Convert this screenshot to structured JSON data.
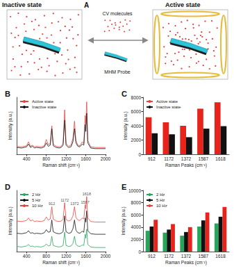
{
  "diagram": {
    "panel": "A",
    "left_title": "Inactive state",
    "right_title": "Active state",
    "molecules_label": "CV molecules",
    "probe_label": "MHM Probe"
  },
  "chart_data": [
    {
      "type": "line",
      "title": "B",
      "x_label": "Raman shift (cm⁻¹)",
      "y_label": "Intensity (a.u.)",
      "x": [
        200,
        300,
        400,
        440,
        480,
        520,
        560,
        600,
        700,
        760,
        800,
        840,
        880,
        912,
        940,
        1000,
        1060,
        1100,
        1140,
        1172,
        1200,
        1250,
        1300,
        1340,
        1372,
        1400,
        1440,
        1480,
        1530,
        1560,
        1587,
        1600,
        1618,
        1640,
        1700,
        1800,
        1900,
        2000
      ],
      "series": [
        {
          "name": "Active state",
          "color": "#e8423c",
          "values": [
            14,
            13,
            15,
            22,
            14,
            16,
            13,
            14,
            13,
            15,
            26,
            17,
            19,
            50,
            18,
            14,
            13,
            14,
            19,
            78,
            19,
            14,
            16,
            28,
            58,
            24,
            16,
            15,
            22,
            19,
            68,
            52,
            92,
            24,
            13,
            12,
            12,
            12
          ]
        },
        {
          "name": "Inactive state",
          "color": "#111111",
          "values": [
            12,
            11,
            13,
            18,
            12,
            14,
            11,
            12,
            11,
            13,
            20,
            14,
            16,
            45,
            15,
            12,
            11,
            12,
            16,
            60,
            16,
            12,
            13,
            22,
            45,
            20,
            14,
            13,
            18,
            16,
            52,
            40,
            72,
            20,
            11,
            10,
            10,
            10
          ]
        }
      ],
      "xlim": [
        200,
        2000
      ],
      "xticks": [
        400,
        800,
        1200,
        1600,
        2000
      ],
      "ylim": [
        0,
        100
      ],
      "tick_labels": "x",
      "legend": "upper left",
      "grid": false
    },
    {
      "type": "bar",
      "title": "C",
      "x_label": "Raman Peaks (cm⁻¹)",
      "y_label": "Intensity (a.u.)",
      "categories": [
        "912",
        "1172",
        "1372",
        "1587",
        "1618"
      ],
      "series": [
        {
          "name": "Active state",
          "color": "#e8231c",
          "values": [
            5200,
            4500,
            4000,
            6400,
            7300
          ]
        },
        {
          "name": "Inactive state",
          "color": "#111111",
          "values": [
            2950,
            2800,
            2400,
            3600,
            3950
          ]
        }
      ],
      "ylim": [
        0,
        8000
      ],
      "yticks": [
        0,
        2000,
        4000,
        6000,
        8000
      ],
      "legend": "upper left",
      "grid": false
    },
    {
      "type": "line",
      "title": "D",
      "x_label": "Raman shift (cm⁻¹)",
      "y_label": "Intensity (a.u.)",
      "x": [
        200,
        300,
        400,
        440,
        480,
        520,
        560,
        600,
        700,
        760,
        800,
        840,
        880,
        912,
        940,
        1000,
        1060,
        1100,
        1140,
        1172,
        1200,
        1250,
        1300,
        1340,
        1372,
        1400,
        1440,
        1480,
        1530,
        1560,
        1587,
        1600,
        1618,
        1640,
        1700,
        1800,
        1900,
        2000
      ],
      "series": [
        {
          "name": "2 Hz",
          "color": "#26a65b",
          "values": [
            10,
            9,
            11,
            14,
            10,
            11,
            9,
            10,
            9,
            11,
            15,
            11,
            12,
            30,
            12,
            10,
            9,
            10,
            12,
            38,
            12,
            10,
            11,
            16,
            30,
            14,
            11,
            10,
            13,
            12,
            34,
            26,
            44,
            14,
            9,
            8,
            8,
            8
          ]
        },
        {
          "name": "5 Hz",
          "color": "#111111",
          "values": [
            36,
            35,
            37,
            41,
            36,
            37,
            35,
            36,
            35,
            37,
            43,
            38,
            39,
            62,
            39,
            36,
            35,
            36,
            39,
            70,
            39,
            36,
            37,
            45,
            62,
            42,
            37,
            36,
            40,
            38,
            66,
            58,
            80,
            41,
            35,
            34,
            34,
            34
          ]
        },
        {
          "name": "10 Hz",
          "color": "#e8423c",
          "values": [
            60,
            59,
            61,
            66,
            60,
            62,
            59,
            60,
            59,
            61,
            68,
            62,
            64,
            88,
            64,
            60,
            59,
            60,
            63,
            96,
            63,
            60,
            62,
            70,
            88,
            67,
            62,
            61,
            66,
            64,
            92,
            84,
            108,
            66,
            59,
            58,
            58,
            58
          ]
        }
      ],
      "annotations": [
        {
          "text": "912",
          "x": 912,
          "y": 88
        },
        {
          "text": "1172",
          "x": 1172,
          "y": 96
        },
        {
          "text": "1372",
          "x": 1372,
          "y": 88
        },
        {
          "text": "1587",
          "x": 1587,
          "y": 92
        },
        {
          "text": "1618",
          "x": 1618,
          "y": 108
        }
      ],
      "xlim": [
        200,
        2000
      ],
      "xticks": [
        400,
        800,
        1200,
        1600,
        2000
      ],
      "ylim": [
        0,
        120
      ],
      "tick_labels": "x",
      "legend": "upper left",
      "grid": false
    },
    {
      "type": "bar",
      "title": "E",
      "x_label": "Raman Peaks (cm⁻¹)",
      "y_label": "Intensity (a.u.)",
      "categories": [
        "912",
        "1172",
        "1372",
        "1587",
        "1618"
      ],
      "series": [
        {
          "name": "2 Hz",
          "color": "#26a65b",
          "values": [
            3400,
            3100,
            2600,
            4100,
            4600
          ]
        },
        {
          "name": "5 Hz",
          "color": "#111111",
          "values": [
            4100,
            3600,
            3200,
            5100,
            5700
          ]
        },
        {
          "name": "10 Hz",
          "color": "#e8231c",
          "values": [
            5200,
            4500,
            4000,
            6400,
            7300
          ]
        }
      ],
      "ylim": [
        0,
        10000
      ],
      "yticks": [
        0,
        2000,
        4000,
        6000,
        8000,
        10000
      ],
      "legend": "upper left",
      "grid": false
    }
  ]
}
